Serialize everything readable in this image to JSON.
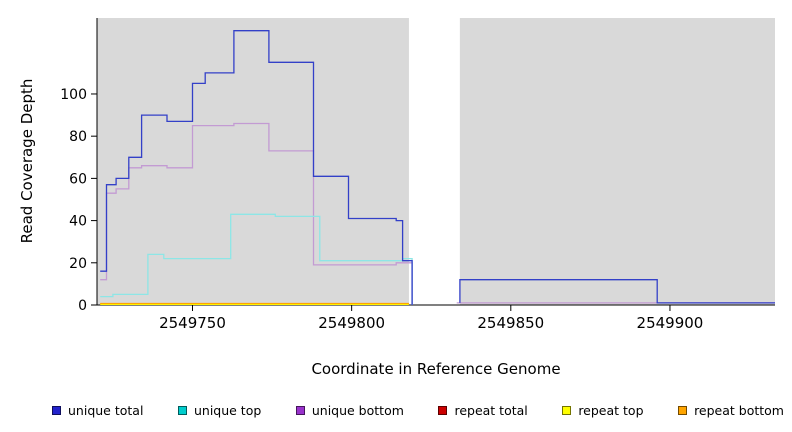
{
  "chart_data": {
    "type": "line",
    "step": true,
    "title": "",
    "xlabel": "Coordinate in Reference Genome",
    "ylabel": "Read Coverage Depth",
    "xlim": [
      2549720,
      2549933
    ],
    "ylim": [
      0,
      136
    ],
    "x_ticks": [
      2549750,
      2549800,
      2549850,
      2549900
    ],
    "y_ticks": [
      0,
      20,
      40,
      60,
      80,
      100
    ],
    "grid": false,
    "plot_bg": "#d9d9d9",
    "figure_bg": "#ffffff",
    "gap_region": {
      "x_start": 2549818,
      "x_end": 2549834,
      "color": "#ffffff"
    },
    "legend_position": "bottom",
    "legend": [
      {
        "label": "unique total",
        "color": "#2222CC"
      },
      {
        "label": "unique top",
        "color": "#00CDCD"
      },
      {
        "label": "unique bottom",
        "color": "#9932CC"
      },
      {
        "label": "repeat total",
        "color": "#CC0000"
      },
      {
        "label": "repeat top",
        "color": "#FFFF00"
      },
      {
        "label": "repeat bottom",
        "color": "#FFA500"
      }
    ],
    "series": [
      {
        "name": "repeat total",
        "color": "#CC0000",
        "segments": [
          [
            [
              2549721,
              0.3
            ],
            [
              2549818,
              0.3
            ]
          ]
        ]
      },
      {
        "name": "repeat top",
        "color": "#FFFF00",
        "segments": [
          [
            [
              2549721,
              0.3
            ],
            [
              2549818,
              0.3
            ]
          ]
        ]
      },
      {
        "name": "repeat bottom",
        "color": "#FFA500",
        "segments": [
          [
            [
              2549721,
              0.7
            ],
            [
              2549818,
              0.7
            ]
          ]
        ]
      },
      {
        "name": "unique bottom",
        "color": "#C39BD3",
        "segments": [
          [
            [
              2549721,
              12
            ],
            [
              2549723,
              12
            ],
            [
              2549723,
              53
            ],
            [
              2549726,
              53
            ],
            [
              2549726,
              55
            ],
            [
              2549730,
              55
            ],
            [
              2549730,
              65
            ],
            [
              2549734,
              65
            ],
            [
              2549734,
              66
            ],
            [
              2549742,
              66
            ],
            [
              2549742,
              65
            ],
            [
              2549750,
              65
            ],
            [
              2549750,
              85
            ],
            [
              2549763,
              85
            ],
            [
              2549763,
              86
            ],
            [
              2549774,
              86
            ],
            [
              2549774,
              73
            ],
            [
              2549788,
              73
            ],
            [
              2549788,
              19
            ],
            [
              2549814,
              19
            ],
            [
              2549814,
              20
            ],
            [
              2549819,
              20
            ],
            [
              2549819,
              0
            ]
          ],
          [
            [
              2549833,
              1
            ],
            [
              2549933,
              1
            ]
          ]
        ]
      },
      {
        "name": "unique top",
        "color": "#8DE6E6",
        "segments": [
          [
            [
              2549721,
              4
            ],
            [
              2549725,
              4
            ],
            [
              2549725,
              5
            ],
            [
              2549736,
              5
            ],
            [
              2549736,
              24
            ],
            [
              2549741,
              24
            ],
            [
              2549741,
              22
            ],
            [
              2549762,
              22
            ],
            [
              2549762,
              43
            ],
            [
              2549776,
              43
            ],
            [
              2549776,
              42
            ],
            [
              2549790,
              42
            ],
            [
              2549790,
              21
            ],
            [
              2549816,
              21
            ],
            [
              2549816,
              22
            ],
            [
              2549819,
              22
            ],
            [
              2549819,
              0
            ]
          ]
        ]
      },
      {
        "name": "unique total",
        "color": "#3340C8",
        "segments": [
          [
            [
              2549721,
              16
            ],
            [
              2549723,
              16
            ],
            [
              2549723,
              57
            ],
            [
              2549726,
              57
            ],
            [
              2549726,
              60
            ],
            [
              2549730,
              60
            ],
            [
              2549730,
              70
            ],
            [
              2549734,
              70
            ],
            [
              2549734,
              90
            ],
            [
              2549742,
              90
            ],
            [
              2549742,
              87
            ],
            [
              2549750,
              87
            ],
            [
              2549750,
              105
            ],
            [
              2549754,
              105
            ],
            [
              2549754,
              110
            ],
            [
              2549763,
              110
            ],
            [
              2549763,
              130
            ],
            [
              2549774,
              130
            ],
            [
              2549774,
              115
            ],
            [
              2549788,
              115
            ],
            [
              2549788,
              61
            ],
            [
              2549799,
              61
            ],
            [
              2549799,
              41
            ],
            [
              2549814,
              41
            ],
            [
              2549814,
              40
            ],
            [
              2549816,
              40
            ],
            [
              2549816,
              21
            ],
            [
              2549819,
              21
            ],
            [
              2549819,
              0
            ]
          ],
          [
            [
              2549834,
              1
            ],
            [
              2549834,
              12
            ],
            [
              2549896,
              12
            ],
            [
              2549896,
              1
            ],
            [
              2549933,
              1
            ]
          ]
        ]
      }
    ]
  }
}
